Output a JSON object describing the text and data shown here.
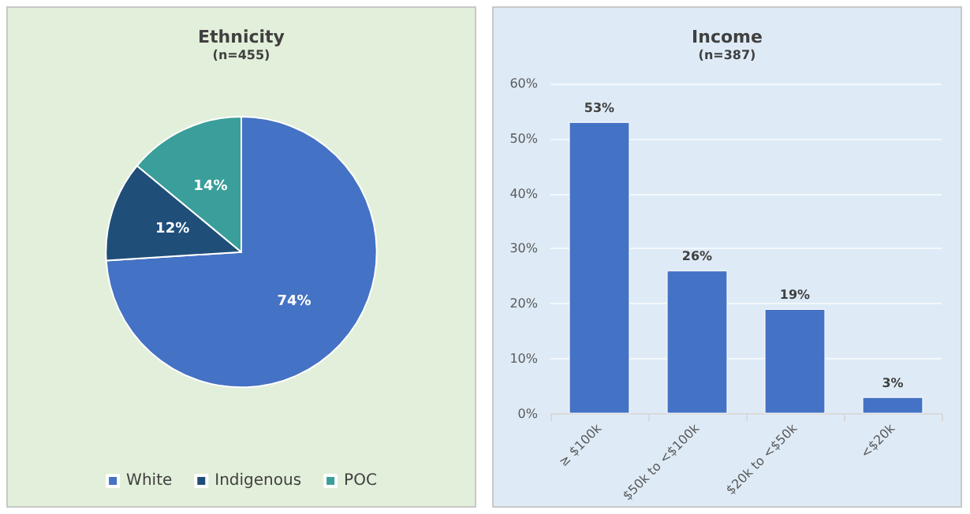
{
  "chart_data": [
    {
      "type": "pie",
      "title": "Ethnicity",
      "subtitle": "(n=455)",
      "categories": [
        "White",
        "Indigenous",
        "POC"
      ],
      "values": [
        74,
        12,
        14
      ],
      "colors": [
        "#4472c4",
        "#1f4e79",
        "#3a9e9a"
      ],
      "value_labels": [
        "74%",
        "12%",
        "14%"
      ],
      "legend": "bottom"
    },
    {
      "type": "bar",
      "title": "Income",
      "subtitle": "(n=387)",
      "categories": [
        "≥ $100k",
        "$50k to <$100k",
        "$20k to <$50k",
        "<$20k"
      ],
      "values": [
        53,
        26,
        19,
        3
      ],
      "color": "#4472c4",
      "value_labels": [
        "53%",
        "26%",
        "19%",
        "3%"
      ],
      "ylim": [
        0,
        60
      ],
      "yticks": [
        {
          "value": 0,
          "label": "0%"
        },
        {
          "value": 10,
          "label": "10%"
        },
        {
          "value": 20,
          "label": "20%"
        },
        {
          "value": 30,
          "label": "30%"
        },
        {
          "value": 40,
          "label": "40%"
        },
        {
          "value": 50,
          "label": "50%"
        },
        {
          "value": 60,
          "label": "60%"
        }
      ],
      "grid": "y"
    }
  ]
}
